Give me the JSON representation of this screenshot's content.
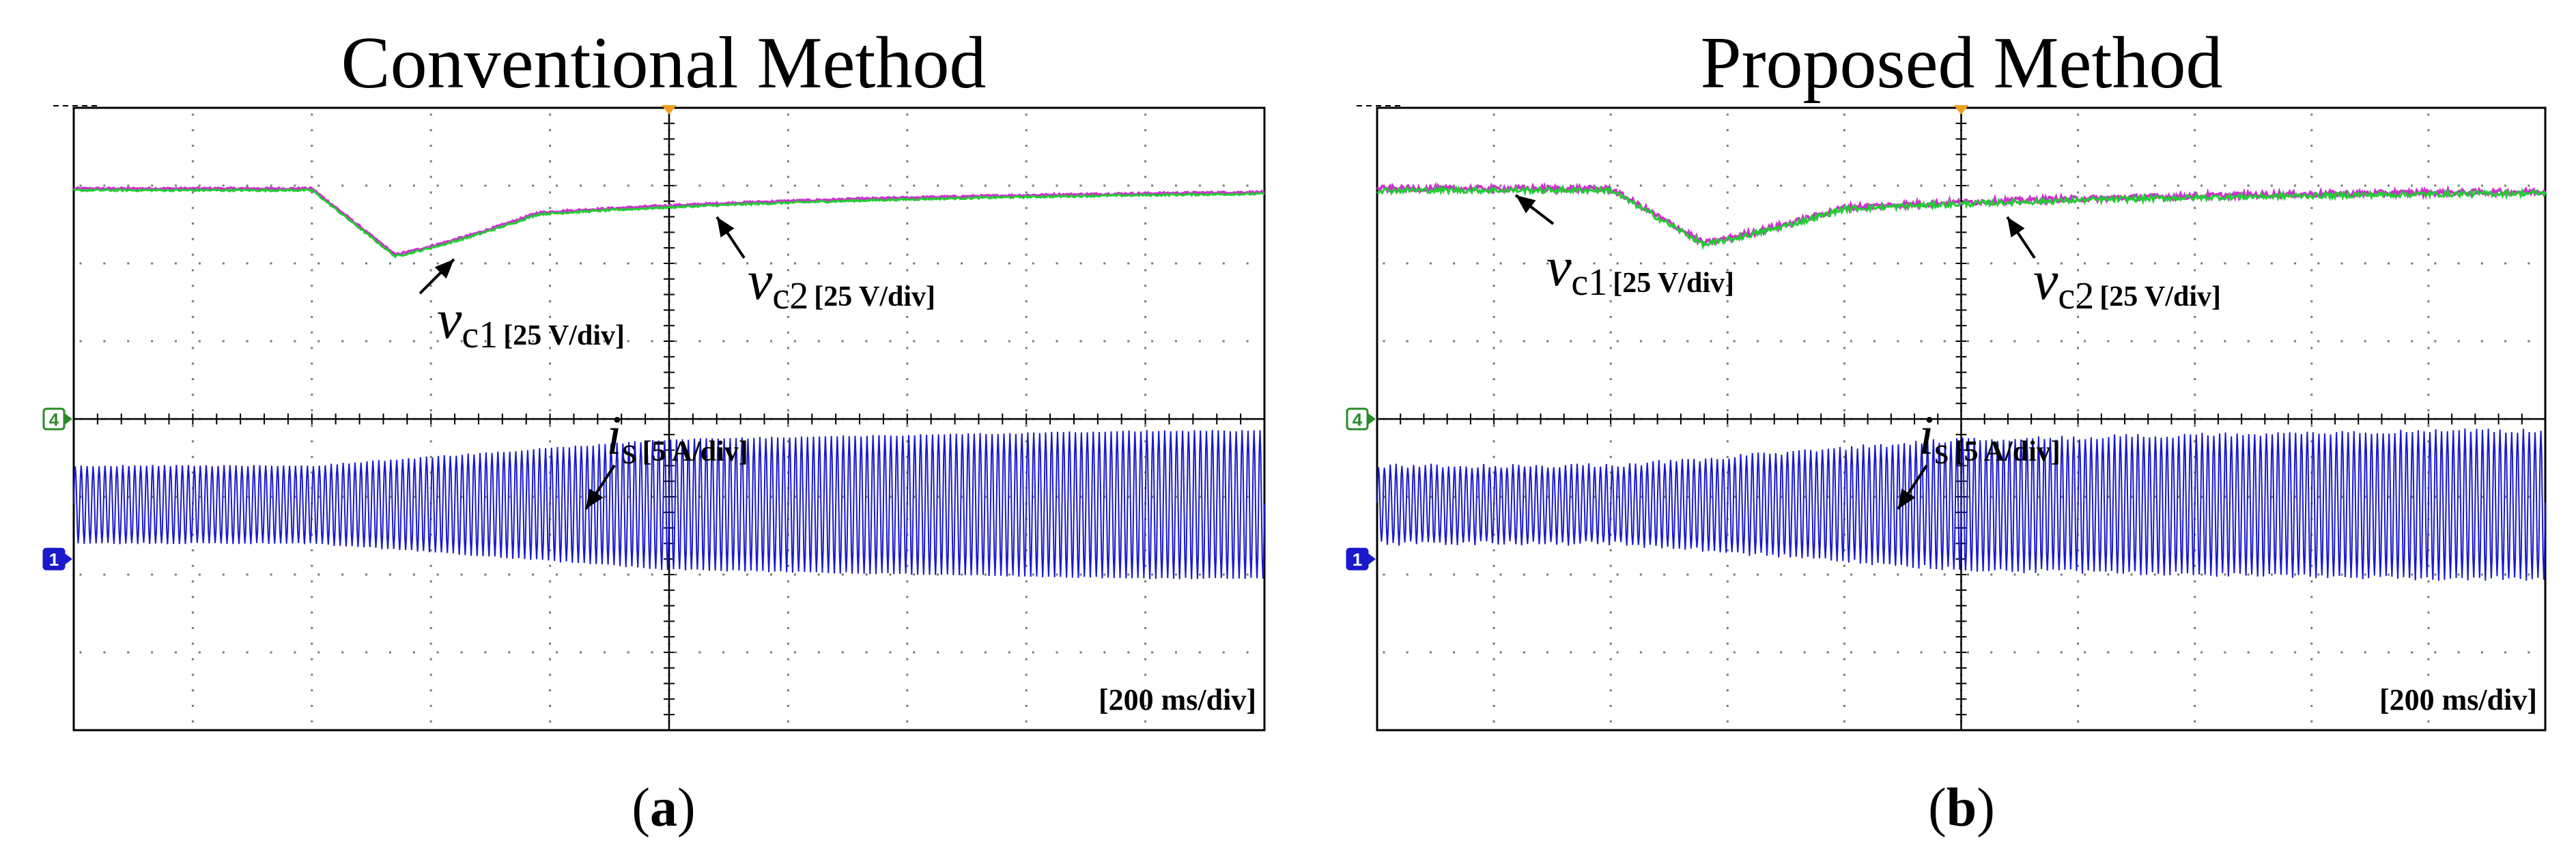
{
  "chart_data": [
    {
      "type": "line",
      "title": "Conventional Method",
      "panel_label_pre": "(",
      "panel_label": "a",
      "panel_label_post": ")",
      "timebase": "[200 ms/div]",
      "channel_markers": [
        "4",
        "1"
      ],
      "grid": true,
      "divisions": {
        "x": 10,
        "y": 8
      },
      "series": [
        {
          "symbol": "v",
          "sub": "c1",
          "scale": "[25 V/div]",
          "color": "#cc33cc",
          "baseline_div": 6.95,
          "dip_center_div": 2.7,
          "dip_depth_div": 0.85,
          "recovery_div": 0.45
        },
        {
          "symbol": "v",
          "sub": "c2",
          "scale": "[25 V/div]",
          "color": "#22cc33",
          "baseline_div": 6.95,
          "dip_center_div": 2.7,
          "dip_depth_div": 0.85,
          "recovery_div": 0.45
        },
        {
          "symbol": "i",
          "sub": "s",
          "scale": "[5 A/div]",
          "color": "#1a1acc",
          "center_div": 2.9,
          "amp_start_div": 0.5,
          "amp_end_div": 0.95,
          "ripple": "clean"
        }
      ]
    },
    {
      "type": "line",
      "title": "Proposed Method",
      "panel_label_pre": "(",
      "panel_label": "b",
      "panel_label_post": ")",
      "timebase": "[200 ms/div]",
      "channel_markers": [
        "4",
        "1"
      ],
      "grid": true,
      "divisions": {
        "x": 10,
        "y": 8
      },
      "series": [
        {
          "symbol": "v",
          "sub": "c1",
          "scale": "[25 V/div]",
          "color": "#cc33cc",
          "baseline_div": 6.95,
          "dip_center_div": 2.8,
          "dip_depth_div": 0.7,
          "recovery_div": 0.35
        },
        {
          "symbol": "v",
          "sub": "c2",
          "scale": "[25 V/div]",
          "color": "#22cc33",
          "baseline_div": 6.95,
          "dip_center_div": 2.8,
          "dip_depth_div": 0.7,
          "recovery_div": 0.35
        },
        {
          "symbol": "i",
          "sub": "s",
          "scale": "[5 A/div]",
          "color": "#1a1acc",
          "center_div": 2.9,
          "amp_start_div": 0.5,
          "amp_end_div": 0.95,
          "ripple": "noisy"
        }
      ]
    }
  ]
}
